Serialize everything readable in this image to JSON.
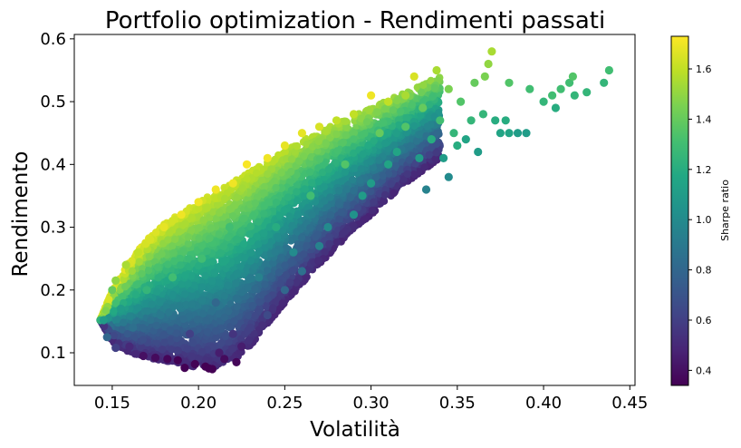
{
  "chart_data": {
    "type": "scatter",
    "title": "Portfolio optimization - Rendimenti passati",
    "xlabel": "Volatilità",
    "ylabel": "Rendimento",
    "xlim": [
      0.128,
      0.453
    ],
    "ylim": [
      0.048,
      0.607
    ],
    "xticks": [
      0.15,
      0.2,
      0.25,
      0.3,
      0.35,
      0.4,
      0.45
    ],
    "xtick_labels": [
      "0.15",
      "0.20",
      "0.25",
      "0.30",
      "0.35",
      "0.40",
      "0.45"
    ],
    "yticks": [
      0.1,
      0.2,
      0.3,
      0.4,
      0.5,
      0.6
    ],
    "ytick_labels": [
      "0.1",
      "0.2",
      "0.3",
      "0.4",
      "0.5",
      "0.6"
    ],
    "grid": false,
    "colorbar": {
      "label": "Sharpe ratio",
      "colormap": "viridis",
      "range": [
        0.34,
        1.73
      ],
      "ticks": [
        0.4,
        0.6,
        0.8,
        1.0,
        1.2,
        1.4,
        1.6
      ],
      "tick_labels": [
        "0.4",
        "0.6",
        "0.8",
        "1.0",
        "1.2",
        "1.4",
        "1.6"
      ]
    },
    "series": [
      {
        "points": [
          [
            0.145,
            0.152
          ],
          [
            0.147,
            0.125
          ],
          [
            0.15,
            0.2
          ],
          [
            0.152,
            0.108
          ],
          [
            0.152,
            0.215
          ],
          [
            0.155,
            0.17
          ],
          [
            0.158,
            0.24
          ],
          [
            0.16,
            0.11
          ],
          [
            0.162,
            0.14
          ],
          [
            0.165,
            0.26
          ],
          [
            0.168,
            0.095
          ],
          [
            0.17,
            0.2
          ],
          [
            0.172,
            0.28
          ],
          [
            0.175,
            0.092
          ],
          [
            0.178,
            0.16
          ],
          [
            0.18,
            0.3
          ],
          [
            0.182,
            0.09
          ],
          [
            0.185,
            0.22
          ],
          [
            0.188,
            0.088
          ],
          [
            0.19,
            0.32
          ],
          [
            0.192,
            0.076
          ],
          [
            0.195,
            0.13
          ],
          [
            0.198,
            0.082
          ],
          [
            0.2,
            0.34
          ],
          [
            0.202,
            0.25
          ],
          [
            0.204,
            0.078
          ],
          [
            0.206,
            0.075
          ],
          [
            0.208,
            0.074
          ],
          [
            0.21,
            0.36
          ],
          [
            0.21,
            0.18
          ],
          [
            0.212,
            0.1
          ],
          [
            0.215,
            0.09
          ],
          [
            0.218,
            0.3
          ],
          [
            0.22,
            0.37
          ],
          [
            0.22,
            0.13
          ],
          [
            0.222,
            0.085
          ],
          [
            0.225,
            0.11
          ],
          [
            0.228,
            0.4
          ],
          [
            0.23,
            0.14
          ],
          [
            0.235,
            0.22
          ],
          [
            0.24,
            0.41
          ],
          [
            0.24,
            0.16
          ],
          [
            0.245,
            0.3
          ],
          [
            0.25,
            0.43
          ],
          [
            0.25,
            0.2
          ],
          [
            0.255,
            0.26
          ],
          [
            0.26,
            0.45
          ],
          [
            0.26,
            0.23
          ],
          [
            0.265,
            0.35
          ],
          [
            0.27,
            0.46
          ],
          [
            0.27,
            0.27
          ],
          [
            0.275,
            0.3
          ],
          [
            0.28,
            0.47
          ],
          [
            0.285,
            0.4
          ],
          [
            0.29,
            0.48
          ],
          [
            0.29,
            0.32
          ],
          [
            0.295,
            0.35
          ],
          [
            0.3,
            0.51
          ],
          [
            0.3,
            0.37
          ],
          [
            0.305,
            0.45
          ],
          [
            0.31,
            0.5
          ],
          [
            0.31,
            0.4
          ],
          [
            0.315,
            0.42
          ],
          [
            0.32,
            0.51
          ],
          [
            0.32,
            0.46
          ],
          [
            0.325,
            0.54
          ],
          [
            0.328,
            0.41
          ],
          [
            0.33,
            0.49
          ],
          [
            0.332,
            0.36
          ],
          [
            0.335,
            0.44
          ],
          [
            0.338,
            0.55
          ],
          [
            0.34,
            0.47
          ],
          [
            0.342,
            0.41
          ],
          [
            0.345,
            0.52
          ],
          [
            0.345,
            0.38
          ],
          [
            0.348,
            0.45
          ],
          [
            0.35,
            0.43
          ],
          [
            0.352,
            0.5
          ],
          [
            0.355,
            0.44
          ],
          [
            0.358,
            0.47
          ],
          [
            0.36,
            0.53
          ],
          [
            0.362,
            0.42
          ],
          [
            0.365,
            0.48
          ],
          [
            0.366,
            0.54
          ],
          [
            0.368,
            0.56
          ],
          [
            0.37,
            0.58
          ],
          [
            0.372,
            0.47
          ],
          [
            0.375,
            0.45
          ],
          [
            0.378,
            0.47
          ],
          [
            0.38,
            0.53
          ],
          [
            0.38,
            0.45
          ],
          [
            0.385,
            0.45
          ],
          [
            0.39,
            0.45
          ],
          [
            0.392,
            0.52
          ],
          [
            0.4,
            0.5
          ],
          [
            0.405,
            0.51
          ],
          [
            0.407,
            0.49
          ],
          [
            0.41,
            0.52
          ],
          [
            0.415,
            0.53
          ],
          [
            0.417,
            0.54
          ],
          [
            0.418,
            0.51
          ],
          [
            0.425,
            0.515
          ],
          [
            0.435,
            0.53
          ],
          [
            0.438,
            0.55
          ]
        ],
        "sharpe": [
          1.1,
          0.8,
          1.4,
          0.6,
          1.5,
          1.1,
          1.55,
          0.5,
          0.85,
          1.6,
          0.4,
          1.25,
          1.65,
          0.38,
          0.9,
          1.68,
          0.36,
          1.3,
          0.35,
          1.7,
          0.34,
          0.6,
          0.35,
          1.7,
          1.3,
          0.34,
          0.34,
          0.34,
          1.7,
          0.8,
          0.45,
          0.38,
          1.3,
          1.7,
          0.55,
          0.36,
          0.45,
          1.72,
          0.6,
          0.95,
          1.7,
          0.65,
          1.2,
          1.68,
          0.8,
          1.0,
          1.68,
          0.85,
          1.3,
          1.65,
          0.95,
          1.0,
          1.6,
          1.35,
          1.6,
          1.05,
          1.1,
          1.7,
          1.1,
          1.4,
          1.6,
          1.15,
          1.15,
          1.55,
          1.35,
          1.65,
          1.1,
          1.4,
          0.95,
          1.2,
          1.55,
          1.3,
          1.1,
          1.45,
          1.0,
          1.25,
          1.2,
          1.35,
          1.15,
          1.25,
          1.4,
          1.1,
          1.25,
          1.45,
          1.5,
          1.55,
          1.2,
          1.15,
          1.2,
          1.35,
          1.15,
          1.1,
          1.1,
          1.3,
          1.25,
          1.3,
          1.2,
          1.3,
          1.3,
          1.35,
          1.25,
          1.25,
          1.25,
          1.3
        ]
      }
    ],
    "cloud": {
      "x_min": 0.143,
      "x_max": 0.34,
      "lower_boundary": [
        [
          0.143,
          0.152
        ],
        [
          0.15,
          0.118
        ],
        [
          0.16,
          0.1
        ],
        [
          0.17,
          0.092
        ],
        [
          0.19,
          0.082
        ],
        [
          0.2,
          0.076
        ],
        [
          0.215,
          0.076
        ],
        [
          0.23,
          0.11
        ],
        [
          0.25,
          0.18
        ],
        [
          0.28,
          0.27
        ],
        [
          0.3,
          0.32
        ],
        [
          0.32,
          0.37
        ],
        [
          0.34,
          0.41
        ]
      ],
      "upper_boundary": [
        [
          0.143,
          0.152
        ],
        [
          0.15,
          0.2
        ],
        [
          0.16,
          0.245
        ],
        [
          0.17,
          0.28
        ],
        [
          0.18,
          0.305
        ],
        [
          0.2,
          0.34
        ],
        [
          0.22,
          0.372
        ],
        [
          0.24,
          0.405
        ],
        [
          0.26,
          0.438
        ],
        [
          0.28,
          0.465
        ],
        [
          0.3,
          0.49
        ],
        [
          0.32,
          0.515
        ],
        [
          0.34,
          0.54
        ]
      ]
    }
  }
}
